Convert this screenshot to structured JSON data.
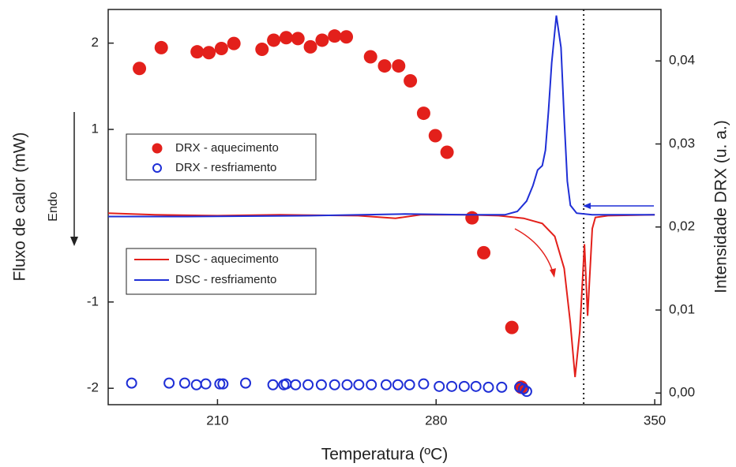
{
  "chart_data": {
    "type": "combo",
    "x_label": "Temperatura (ºC)",
    "y_label": "Fluxo de calor (mW)",
    "y2_label": "Intensidade DRX (u. a.)",
    "annotation": "Endo",
    "xlim": [
      175,
      352
    ],
    "xticks": [
      210,
      280,
      350
    ],
    "ylim": [
      -2.19,
      2.39
    ],
    "yticks": [
      -2,
      -1,
      1,
      2
    ],
    "y2lim": [
      -0.0014,
      0.0462
    ],
    "y2ticks": [
      {
        "value": 0,
        "label": "0,00"
      },
      {
        "value": 0.01,
        "label": "0,01"
      },
      {
        "value": 0.02,
        "label": "0,02"
      },
      {
        "value": 0.03,
        "label": "0,03"
      },
      {
        "value": 0.04,
        "label": "0,04"
      }
    ],
    "vline": 327.25,
    "series": [
      {
        "name": "DRX - aquecimento",
        "type": "scatter",
        "marker": "filled",
        "axis": "y2",
        "color": "#e3201b",
        "x": [
          185,
          192,
          203.5,
          207.25,
          211.25,
          215.25,
          224.25,
          228,
          232,
          235.75,
          239.75,
          243.5,
          247.5,
          251.25,
          259,
          263.5,
          268,
          271.75,
          276,
          279.75,
          283.5,
          291.5,
          295.25,
          304.25,
          307.25
        ],
        "values": [
          0.0391,
          0.0416,
          0.0411,
          0.041,
          0.0415,
          0.0421,
          0.0414,
          0.0425,
          0.0428,
          0.0427,
          0.0417,
          0.0425,
          0.043,
          0.0429,
          0.0405,
          0.0394,
          0.0394,
          0.0376,
          0.0337,
          0.031,
          0.029,
          0.0211,
          0.0169,
          0.0079,
          0.0007
        ]
      },
      {
        "name": "DRX - resfriamento",
        "type": "scatter",
        "marker": "open",
        "axis": "y2",
        "color": "#1f2fd6",
        "x": [
          182.5,
          194.5,
          199.5,
          203.25,
          206.25,
          210.75,
          211.75,
          219,
          227.75,
          231.25,
          232,
          235,
          239,
          243.25,
          247.5,
          251.5,
          255.25,
          259.25,
          264,
          267.75,
          271.5,
          276,
          281,
          285,
          289,
          292.75,
          296.75,
          301,
          306.75,
          308,
          309
        ],
        "values": [
          0.0012,
          0.0012,
          0.0012,
          0.001,
          0.0011,
          0.0011,
          0.0011,
          0.0012,
          0.001,
          0.001,
          0.0011,
          0.001,
          0.001,
          0.001,
          0.001,
          0.001,
          0.001,
          0.001,
          0.001,
          0.001,
          0.001,
          0.0011,
          0.0008,
          0.0008,
          0.0008,
          0.0008,
          0.0007,
          0.0007,
          0.0007,
          0.0005,
          0.0002
        ]
      },
      {
        "name": "DSC - aquecimento",
        "type": "line",
        "color": "#e3201b",
        "x": [
          175,
          190,
          210,
          230,
          255,
          267,
          275,
          290,
          300,
          308,
          314,
          318,
          321,
          323,
          324.5,
          326,
          327.5,
          328.5,
          330,
          331,
          335,
          350
        ],
        "values": [
          0.03,
          0.01,
          0,
          0.01,
          0,
          -0.03,
          0.01,
          0.01,
          0,
          -0.03,
          -0.09,
          -0.24,
          -0.61,
          -1.25,
          -1.87,
          -1.34,
          -0.33,
          -1.16,
          -0.15,
          -0.02,
          0,
          0.01
        ]
      },
      {
        "name": "DSC - resfriamento",
        "type": "line",
        "color": "#1f2fd6",
        "x": [
          175,
          200,
          240,
          270,
          290,
          302,
          306,
          309,
          311,
          312.5,
          314,
          315,
          316,
          317,
          318.5,
          320,
          321,
          322,
          323,
          325,
          330,
          350
        ],
        "values": [
          -0.01,
          -0.01,
          0,
          0.02,
          0.01,
          0.01,
          0.05,
          0.17,
          0.35,
          0.53,
          0.58,
          0.76,
          1.22,
          1.77,
          2.32,
          1.95,
          1.13,
          0.4,
          0.12,
          0.03,
          0.01,
          0.01
        ]
      }
    ]
  }
}
